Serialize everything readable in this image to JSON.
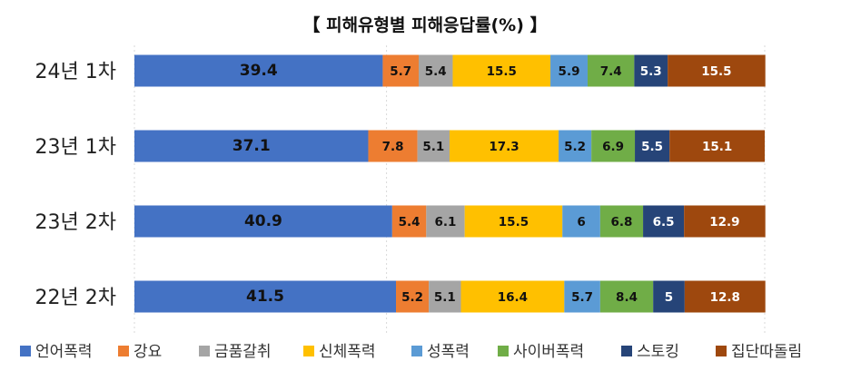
{
  "chart_data": {
    "type": "bar",
    "orientation": "horizontal",
    "stacked": true,
    "title": "【 피해유형별 피해응답률(%) 】",
    "categories": [
      "24년 1차",
      "23년 1차",
      "23년 2차",
      "22년 2차"
    ],
    "xlim": [
      0,
      100
    ],
    "grid": true,
    "legend_position": "bottom",
    "series": [
      {
        "name": "언어폭력",
        "color": "#4472C4",
        "values": [
          39.4,
          37.1,
          40.9,
          41.5
        ]
      },
      {
        "name": "강요",
        "color": "#ED7D31",
        "values": [
          5.7,
          7.8,
          5.4,
          5.2
        ]
      },
      {
        "name": "금품갈취",
        "color": "#A5A5A5",
        "values": [
          5.4,
          5.1,
          6.1,
          5.1
        ]
      },
      {
        "name": "신체폭력",
        "color": "#FFC000",
        "values": [
          15.5,
          17.3,
          15.5,
          16.4
        ]
      },
      {
        "name": "성폭력",
        "color": "#5B9BD5",
        "values": [
          5.9,
          5.2,
          6,
          5.7
        ]
      },
      {
        "name": "사이버폭력",
        "color": "#70AD47",
        "values": [
          7.4,
          6.9,
          6.8,
          8.4
        ]
      },
      {
        "name": "스토킹",
        "color": "#264478",
        "values": [
          5.3,
          5.5,
          6.5,
          5
        ]
      },
      {
        "name": "집단따돌림",
        "color": "#9E480E",
        "values": [
          15.5,
          15.1,
          12.9,
          12.8
        ]
      }
    ],
    "label_colors": {
      "언어폭력": "#111111",
      "강요": "#111111",
      "금품갈취": "#111111",
      "신체폭력": "#111111",
      "성폭력": "#111111",
      "사이버폭력": "#111111",
      "스토킹": "#ffffff",
      "집단따돌림": "#ffffff"
    }
  }
}
